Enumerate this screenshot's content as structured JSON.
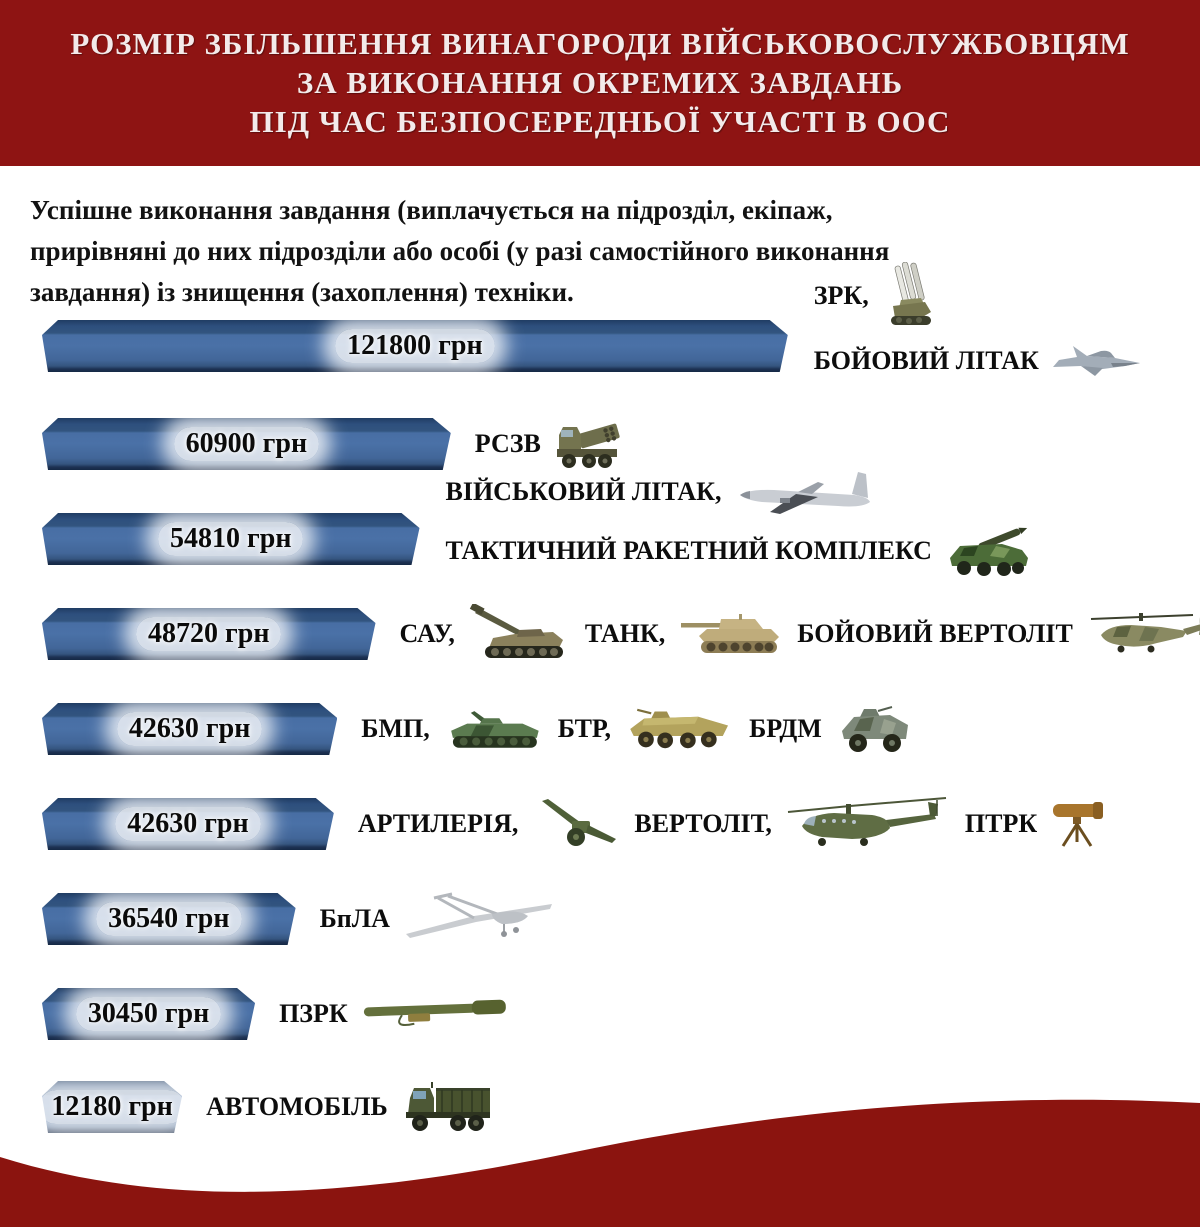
{
  "header": {
    "lines": [
      "РОЗМІР ЗБІЛЬШЕННЯ ВИНАГОРОДИ ВІЙСЬКОВОСЛУЖБОВЦЯМ",
      "ЗА ВИКОНАННЯ ОКРЕМИХ ЗАВДАНЬ",
      "ПІД ЧАС БЕЗПОСЕРЕДНЬОЇ УЧАСТІ В ООС"
    ]
  },
  "intro": {
    "lines": [
      "Успішне виконання завдання (виплачується на підрозділ, екіпаж,",
      "прирівняні до них підрозділи або особі (у разі самостійного виконання",
      "завдання) із знищення (захоплення) техніки."
    ]
  },
  "chart_data": {
    "type": "bar",
    "orientation": "horizontal",
    "title": "РОЗМІР ЗБІЛЬШЕННЯ ВИНАГОРОДИ ВІЙСЬКОВОСЛУЖБОВЦЯМ ЗА ВИКОНАННЯ ОКРЕМИХ ЗАВДАНЬ ПІД ЧАС БЕЗПОСЕРЕДНЬОЇ УЧАСТІ В ООС",
    "unit": "грн",
    "categories": [
      "ЗРК, БОЙОВИЙ ЛІТАК",
      "РСЗВ",
      "ВІЙСЬКОВИЙ ЛІТАК, ТАКТИЧНИЙ РАКЕТНИЙ КОМПЛЕКС",
      "САУ, ТАНК, БОЙОВИЙ ВЕРТОЛІТ",
      "БМП, БТР, БРДМ",
      "АРТИЛЕРІЯ, ВЕРТОЛІТ, ПТРК",
      "БпЛА",
      "ПЗРК",
      "АВТОМОБІЛЬ"
    ],
    "values": [
      121800,
      60900,
      54810,
      48720,
      42630,
      42630,
      36540,
      30450,
      12180
    ],
    "bar_color": "#45699d",
    "value_labels_inside_bars": true,
    "legend": "none",
    "grid": false
  },
  "bars": [
    {
      "value_label": "121800 грн",
      "width_pct": 64.4,
      "segments": [
        {
          "text": "ЗРК,",
          "icon": "sam-launcher-icon"
        },
        {
          "text": "БОЙОВИЙ ЛІТАК",
          "icon": "fighter-jet-icon"
        }
      ]
    },
    {
      "value_label": "60900 грн",
      "width_pct": 35.3,
      "segments": [
        {
          "text": "РСЗВ",
          "icon": "mlrs-truck-icon"
        }
      ]
    },
    {
      "value_label": "54810 грн",
      "width_pct": 32.6,
      "segments": [
        {
          "text": "ВІЙСЬКОВИЙ ЛІТАК,",
          "icon": "military-plane-icon"
        },
        {
          "text": "ТАКТИЧНИЙ РАКЕТНИЙ КОМПЛЕКС",
          "icon": "tactical-missile-system-icon"
        }
      ]
    },
    {
      "value_label": "48720 грн",
      "width_pct": 28.8,
      "segments": [
        {
          "text": "САУ,",
          "icon": "self-propelled-gun-icon"
        },
        {
          "text": "ТАНК,",
          "icon": "tank-icon"
        },
        {
          "text": "БОЙОВИЙ ВЕРТОЛІТ",
          "icon": "attack-helicopter-icon"
        }
      ]
    },
    {
      "value_label": "42630 грн",
      "width_pct": 25.5,
      "segments": [
        {
          "text": "БМП,",
          "icon": "ifv-icon"
        },
        {
          "text": "БТР,",
          "icon": "apc-icon"
        },
        {
          "text": "БРДМ",
          "icon": "recon-vehicle-icon"
        }
      ]
    },
    {
      "value_label": "42630 грн",
      "width_pct": 25.2,
      "segments": [
        {
          "text": "АРТИЛЕРІЯ,",
          "icon": "howitzer-icon"
        },
        {
          "text": "ВЕРТОЛІТ,",
          "icon": "transport-helicopter-icon"
        },
        {
          "text": "ПТРК",
          "icon": "atgm-icon"
        }
      ]
    },
    {
      "value_label": "36540 грн",
      "width_pct": 21.9,
      "segments": [
        {
          "text": "БпЛА",
          "icon": "uav-icon"
        }
      ]
    },
    {
      "value_label": "30450 грн",
      "width_pct": 18.4,
      "segments": [
        {
          "text": "ПЗРК",
          "icon": "manpads-icon"
        }
      ]
    },
    {
      "value_label": "12180 грн",
      "width_pct": 12.1,
      "segments": [
        {
          "text": "АВТОМОБІЛЬ",
          "icon": "military-truck-icon"
        }
      ]
    }
  ],
  "colors": {
    "header_bg": "#8e1413",
    "header_text": "#f3eaea",
    "bar_front": "#45699d",
    "bar_top": "#2d4f7d",
    "bar_edge": "#152845",
    "wave": "#8b140f",
    "text": "#0d0d0d"
  }
}
